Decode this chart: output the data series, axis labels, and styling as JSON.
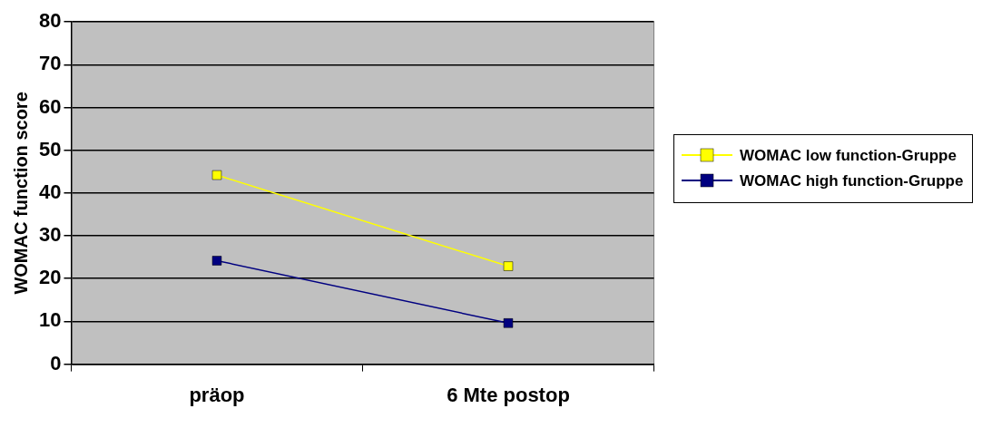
{
  "chart_data": {
    "type": "line",
    "ylabel": "WOMAC function score",
    "categories": [
      "präop",
      "6 Mte postop"
    ],
    "series": [
      {
        "name": "WOMAC low function-Gruppe",
        "color": "#ffff00",
        "values": [
          44.2,
          22.9
        ]
      },
      {
        "name": "WOMAC high function-Gruppe",
        "color": "#000080",
        "values": [
          24.2,
          9.6
        ]
      }
    ],
    "ylim": [
      0,
      80
    ],
    "yticks": [
      0,
      10,
      20,
      30,
      40,
      50,
      60,
      70,
      80
    ],
    "grid": "y",
    "legend": "right",
    "marker": "square",
    "line_style": "solid"
  }
}
